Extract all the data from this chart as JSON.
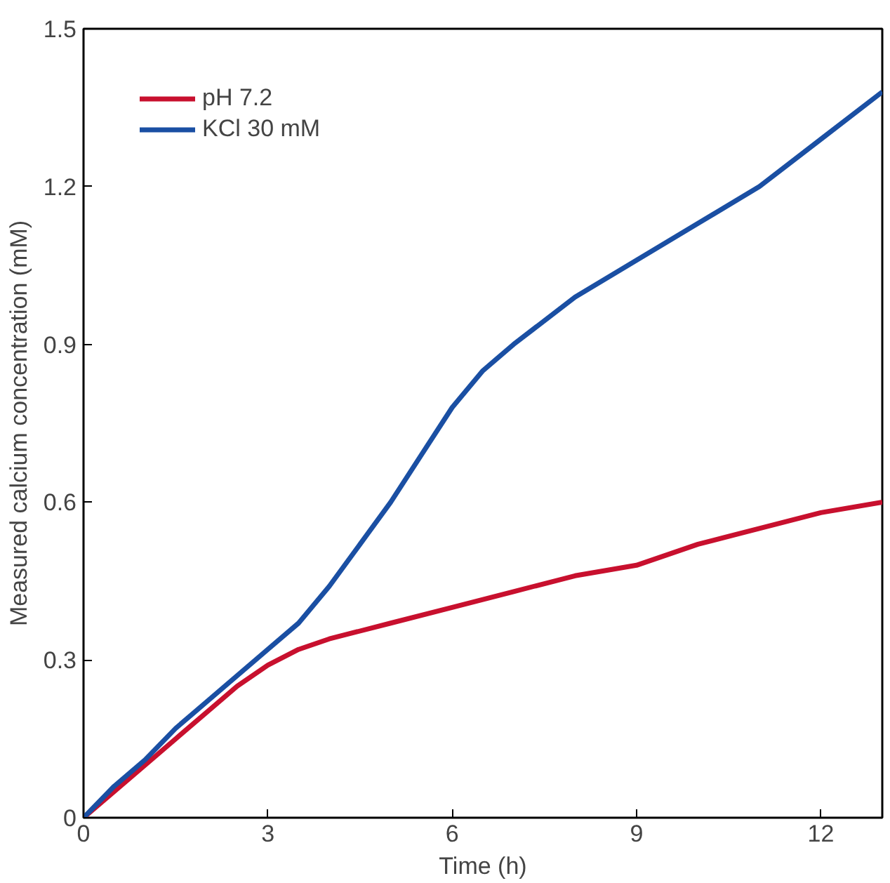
{
  "chart_data": {
    "type": "line",
    "xlabel": "Time (h)",
    "ylabel": "Measured calcium concentration (mM)",
    "xlim": [
      0,
      13
    ],
    "ylim": [
      0,
      1.5
    ],
    "xticks": [
      0,
      3,
      6,
      9,
      12
    ],
    "yticks": [
      0,
      0.3,
      0.6,
      0.9,
      1.2,
      1.5
    ],
    "grid": false,
    "legend": "top left",
    "line_style": "solid",
    "series": [
      {
        "name": "pH 7.2",
        "color": "#c8102e",
        "x": [
          0,
          0.5,
          1,
          1.5,
          2,
          2.5,
          3,
          3.5,
          4,
          5,
          6,
          7,
          8,
          9,
          10,
          11,
          12,
          13
        ],
        "values": [
          0,
          0.05,
          0.1,
          0.15,
          0.2,
          0.25,
          0.29,
          0.32,
          0.34,
          0.37,
          0.4,
          0.43,
          0.46,
          0.48,
          0.52,
          0.55,
          0.58,
          0.6
        ]
      },
      {
        "name": "KCl 30 mM",
        "color": "#1a4fa3",
        "x": [
          0,
          0.5,
          1,
          1.5,
          2,
          2.5,
          3,
          3.5,
          4,
          4.5,
          5,
          5.5,
          6,
          6.5,
          7,
          8,
          9,
          10,
          11,
          12,
          13
        ],
        "values": [
          0,
          0.06,
          0.11,
          0.17,
          0.22,
          0.27,
          0.32,
          0.37,
          0.44,
          0.52,
          0.6,
          0.69,
          0.78,
          0.85,
          0.9,
          0.99,
          1.06,
          1.13,
          1.2,
          1.29,
          1.38
        ]
      }
    ]
  }
}
